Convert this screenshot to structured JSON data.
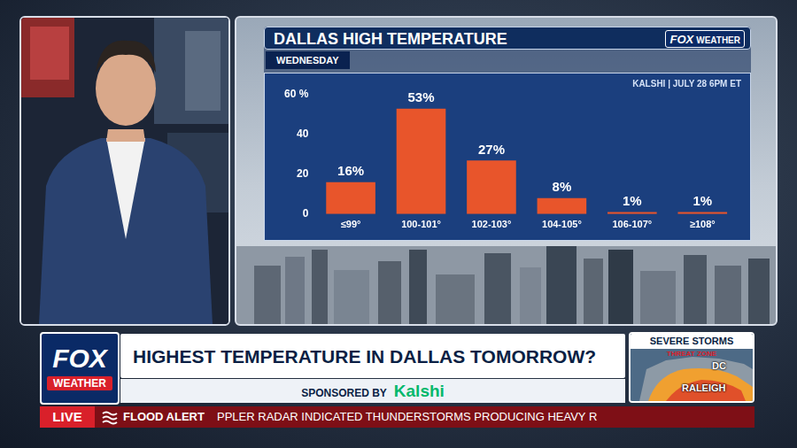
{
  "chart_data": {
    "type": "bar",
    "title": "DALLAS HIGH TEMPERATURE",
    "subtitle": "WEDNESDAY",
    "annotations": [
      "KALSHI | JULY 28 6PM ET"
    ],
    "categories": [
      "≤99°",
      "100-101°",
      "102-103°",
      "104-105°",
      "106-107°",
      "≥108°"
    ],
    "values": [
      16,
      53,
      27,
      8,
      1,
      1
    ],
    "value_labels": [
      "16%",
      "53%",
      "27%",
      "8%",
      "1%",
      "1%"
    ],
    "color": "#e8552b",
    "ylim": [
      0,
      60
    ],
    "yticks": [
      0,
      20,
      40,
      {
        "value": 60,
        "label": "60 %"
      }
    ],
    "grid": false,
    "data_labels": true
  },
  "screen": {
    "chart_logo": [
      "FOX",
      "WEATHER"
    ],
    "network_logo": [
      "FOX",
      "WEATHER"
    ],
    "headline": "HIGHEST TEMPERATURE IN DALLAS TOMORROW?",
    "sponsor_prefix": "SPONSORED BY",
    "sponsor": "Kalshi",
    "inset": {
      "title": "SEVERE STORMS",
      "subtitle": "THREAT ZONE",
      "places": [
        "DC",
        "RALEIGH"
      ]
    },
    "live": "LIVE",
    "alert": "FLOOD ALERT",
    "ticker": "PPLER RADAR INDICATED THUNDERSTORMS PRODUCING HEAVY R"
  }
}
